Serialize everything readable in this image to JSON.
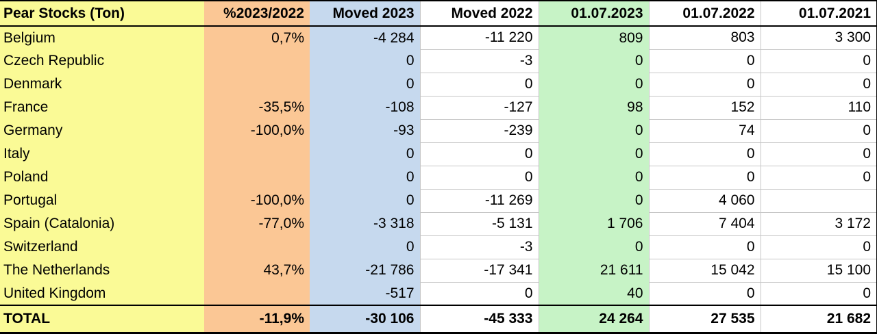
{
  "colors": {
    "yellow": "#FAFA96",
    "orange": "#FBC795",
    "blue": "#C6D9EE",
    "green": "#C7F3C6",
    "grid": "#C6C6C6",
    "border": "#000000"
  },
  "chart_data": {
    "type": "table",
    "title": "Pear Stocks (Ton)",
    "columns": [
      "Pear Stocks (Ton)",
      "%2023/2022",
      "Moved 2023",
      "Moved 2022",
      "01.07.2023",
      "01.07.2022",
      "01.07.2021"
    ],
    "rows": [
      [
        "Belgium",
        "0,7%",
        "-4 284",
        "-11 220",
        "809",
        "803",
        "3 300"
      ],
      [
        "Czech Republic",
        "",
        "0",
        "-3",
        "0",
        "0",
        "0"
      ],
      [
        "Denmark",
        "",
        "0",
        "0",
        "0",
        "0",
        "0"
      ],
      [
        "France",
        "-35,5%",
        "-108",
        "-127",
        "98",
        "152",
        "110"
      ],
      [
        "Germany",
        "-100,0%",
        "-93",
        "-239",
        "0",
        "74",
        "0"
      ],
      [
        "Italy",
        "",
        "0",
        "0",
        "0",
        "0",
        "0"
      ],
      [
        "Poland",
        "",
        "0",
        "0",
        "0",
        "0",
        "0"
      ],
      [
        "Portugal",
        "-100,0%",
        "0",
        "-11 269",
        "0",
        "4 060",
        ""
      ],
      [
        "Spain (Catalonia)",
        "-77,0%",
        "-3 318",
        "-5 131",
        "1 706",
        "7 404",
        "3 172"
      ],
      [
        "Switzerland",
        "",
        "0",
        "-3",
        "0",
        "0",
        "0"
      ],
      [
        "The Netherlands",
        "43,7%",
        "-21 786",
        "-17 341",
        "21 611",
        "15 042",
        "15 100"
      ],
      [
        "United Kingdom",
        "",
        "-517",
        "0",
        "40",
        "0",
        "0"
      ]
    ],
    "total": [
      "TOTAL",
      "-11,9%",
      "-30 106",
      "-45 333",
      "24 264",
      "27 535",
      "21 682"
    ]
  }
}
